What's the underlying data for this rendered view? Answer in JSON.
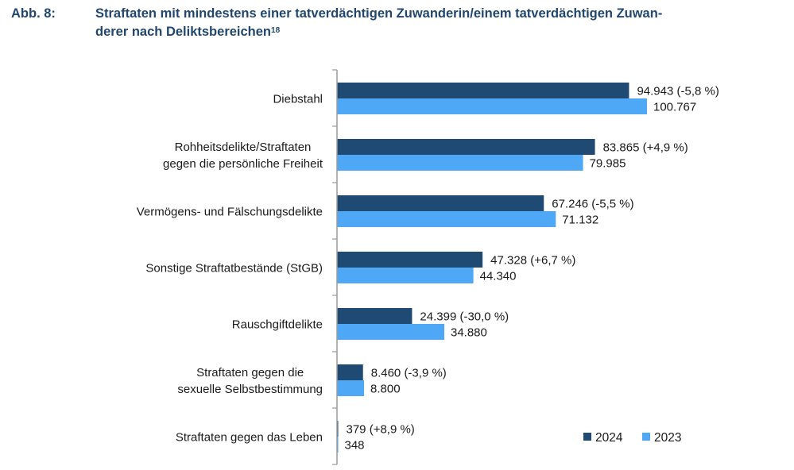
{
  "title": {
    "prefix": "Abb. 8:",
    "text": "Straftaten mit mindestens einer tatverdächtigen Zuwanderin/einem tatverdächtigen Zuwan-derer nach Deliktsbereichen",
    "line1": "Straftaten mit mindestens einer tatverdächtigen Zuwanderin/einem tatverdächtigen Zuwan-",
    "line2": "derer nach Deliktsbereichen",
    "footnote": "18"
  },
  "colors": {
    "series_2024": "#1f4a73",
    "series_2023": "#4ea8f6",
    "title": "#21466f",
    "axis": "#9a9a9a"
  },
  "chart_data": {
    "type": "bar",
    "orientation": "horizontal",
    "title": "Abb. 8: Straftaten mit mindestens einer tatverdächtigen Zuwanderin/einem tatverdächtigen Zuwanderer nach Deliktsbereichen",
    "xlabel": "",
    "ylabel": "",
    "xlim": [
      0,
      130000
    ],
    "grid": false,
    "legend_position": "bottom-right",
    "categories": [
      [
        "Diebstahl"
      ],
      [
        "Rohheitsdelikte/Straftaten",
        "gegen die persönliche Freiheit"
      ],
      [
        "Vermögens- und Fälschungsdelikte"
      ],
      [
        "Sonstige Straftatbestände (StGB)"
      ],
      [
        "Rauschgiftdelikte"
      ],
      [
        "Straftaten gegen die",
        "sexuelle Selbstbestimmung"
      ],
      [
        "Straftaten gegen das Leben"
      ]
    ],
    "series": [
      {
        "name": "2024",
        "values": [
          94943,
          83865,
          67246,
          47328,
          24399,
          8460,
          379
        ],
        "labels": [
          "94.943 (-5,8 %)",
          "83.865 (+4,9 %)",
          "67.246 (-5,5 %)",
          "47.328 (+6,7 %)",
          "24.399 (-30,0 %)",
          "8.460 (-3,9 %)",
          "379 (+8,9 %)"
        ]
      },
      {
        "name": "2023",
        "values": [
          100767,
          79985,
          71132,
          44340,
          34880,
          8800,
          348
        ],
        "labels": [
          "100.767",
          "79.985",
          "71.132",
          "44.340",
          "34.880",
          "8.800",
          "348"
        ]
      }
    ]
  }
}
